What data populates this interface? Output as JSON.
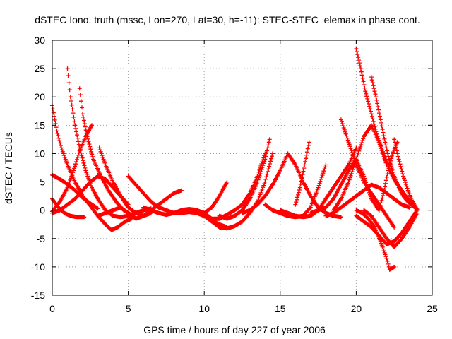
{
  "chart_data": {
    "type": "scatter",
    "title": "dSTEC Iono. truth (mssc, Lon=270, Lat=30, h=-11): STEC-STEC_elemax in phase cont.",
    "xlabel": "GPS time / hours of day 227 of year 2006",
    "ylabel": "dSTEC  / TECUs",
    "xlim": [
      0,
      25
    ],
    "ylim": [
      -15,
      30
    ],
    "xticks": [
      0,
      5,
      10,
      15,
      20,
      25
    ],
    "yticks": [
      -15,
      -10,
      -5,
      0,
      5,
      10,
      15,
      20,
      25,
      30
    ],
    "grid": true,
    "marker": "plus",
    "color": "#ff0000",
    "series": [
      {
        "x": [
          0.0,
          0.3,
          0.6,
          1.0,
          1.5,
          2.0,
          2.5,
          3.0,
          3.5,
          3.9,
          4.3,
          4.8,
          5.2
        ],
        "y": [
          18.5,
          14.0,
          11.0,
          8.0,
          5.0,
          2.5,
          0.8,
          -1.0,
          -2.5,
          -3.5,
          -3.0,
          -2.0,
          -1.5
        ]
      },
      {
        "x": [
          1.0,
          1.2,
          1.5,
          1.8,
          2.2,
          2.6,
          3.0,
          3.5,
          4.0,
          4.5,
          5.0,
          5.5,
          6.0,
          6.5
        ],
        "y": [
          25.0,
          20.0,
          15.0,
          11.0,
          7.0,
          4.0,
          2.0,
          0.0,
          -1.0,
          -1.2,
          -1.0,
          -0.5,
          0.0,
          0.3
        ]
      },
      {
        "x": [
          1.8,
          2.0,
          2.3,
          2.7,
          3.2,
          3.7,
          4.2,
          4.7,
          5.2,
          5.6,
          6.0
        ],
        "y": [
          21.5,
          17.0,
          13.0,
          9.0,
          6.0,
          3.5,
          1.5,
          0.0,
          -0.8,
          -0.5,
          0.0
        ]
      },
      {
        "x": [
          3.1,
          3.5,
          4.0,
          4.5,
          5.0,
          5.5,
          6.0,
          6.5
        ],
        "y": [
          11.0,
          8.0,
          5.0,
          2.5,
          0.5,
          -0.5,
          -1.0,
          -0.5
        ]
      },
      {
        "x": [
          0.0,
          0.5,
          1.0,
          1.5,
          2.0,
          2.5,
          3.0
        ],
        "y": [
          6.2,
          5.5,
          4.6,
          3.5,
          2.2,
          1.2,
          0.3
        ]
      },
      {
        "x": [
          0.0,
          0.4,
          0.8,
          1.2,
          1.6,
          2.1
        ],
        "y": [
          2.0,
          0.5,
          -0.5,
          -1.0,
          -1.2,
          -1.2
        ]
      },
      {
        "x": [
          0.0,
          0.5,
          1.0,
          1.4,
          1.8,
          2.2,
          2.6
        ],
        "y": [
          -0.2,
          1.5,
          4.0,
          7.0,
          10.5,
          13.0,
          15.0
        ]
      },
      {
        "x": [
          0.0,
          0.5,
          1.0,
          1.5,
          2.0,
          2.5,
          3.0,
          3.5,
          4.0,
          4.5,
          5.0
        ],
        "y": [
          -0.5,
          0.0,
          1.0,
          2.0,
          3.5,
          5.0,
          6.0,
          5.5,
          4.0,
          2.5,
          1.0
        ]
      },
      {
        "x": [
          5.0,
          5.5,
          6.0,
          6.5,
          7.0,
          7.5,
          8.0,
          8.5,
          9.0,
          9.5,
          10.0,
          10.5,
          11.0,
          11.5
        ],
        "y": [
          6.0,
          4.5,
          3.0,
          1.5,
          0.5,
          0.0,
          -0.5,
          -0.5,
          -0.3,
          -0.5,
          -1.0,
          -1.8,
          -2.5,
          -3.0
        ]
      },
      {
        "x": [
          3.0,
          3.5,
          4.0,
          4.5,
          5.0,
          5.5,
          6.0,
          6.5,
          7.0,
          7.5,
          8.0,
          8.5
        ],
        "y": [
          -1.0,
          -0.5,
          0.0,
          0.5,
          -0.5,
          -1.5,
          -1.0,
          0.0,
          1.0,
          2.0,
          3.0,
          3.5
        ]
      },
      {
        "x": [
          6.0,
          6.5,
          7.0,
          7.5,
          8.0,
          8.5,
          9.0,
          9.5,
          10.0,
          10.5,
          11.0,
          11.5
        ],
        "y": [
          0.5,
          0.0,
          -0.5,
          -0.8,
          -0.5,
          0.0,
          0.2,
          0.0,
          -0.5,
          0.5,
          2.5,
          5.0
        ]
      },
      {
        "x": [
          8.5,
          9.0,
          9.5,
          10.0,
          10.5,
          11.0,
          11.5,
          12.0,
          12.5,
          13.0,
          13.5,
          14.0
        ],
        "y": [
          0.0,
          0.2,
          0.0,
          -0.5,
          -1.5,
          -1.5,
          -0.8,
          0.0,
          1.0,
          3.0,
          6.0,
          10.0
        ]
      },
      {
        "x": [
          10.0,
          10.5,
          11.0,
          11.5,
          12.0,
          12.5,
          13.0,
          13.5,
          14.0,
          14.5
        ],
        "y": [
          -1.0,
          -2.0,
          -3.0,
          -3.2,
          -2.8,
          -2.0,
          -0.5,
          1.5,
          5.0,
          10.0
        ]
      },
      {
        "x": [
          11.0,
          11.5,
          12.0,
          12.5,
          13.0,
          13.5,
          14.0,
          14.3
        ],
        "y": [
          -1.0,
          -1.5,
          -1.0,
          0.0,
          2.0,
          5.0,
          9.0,
          12.5
        ]
      },
      {
        "x": [
          12.5,
          13.0,
          13.5,
          14.0,
          14.5,
          15.0,
          15.5,
          16.0,
          16.5,
          17.0,
          17.5,
          18.0,
          18.5,
          19.0
        ],
        "y": [
          -0.5,
          0.0,
          1.0,
          2.5,
          4.5,
          7.0,
          10.0,
          8.0,
          5.0,
          2.5,
          0.5,
          -0.5,
          -1.0,
          -1.2
        ]
      },
      {
        "x": [
          14.0,
          14.5,
          15.0,
          15.5,
          16.0,
          16.5,
          17.0,
          17.5,
          18.0
        ],
        "y": [
          1.0,
          0.0,
          -0.5,
          -1.0,
          -1.2,
          -1.0,
          0.5,
          4.0,
          8.0
        ]
      },
      {
        "x": [
          15.0,
          15.5,
          16.0,
          16.5,
          17.0,
          17.5,
          18.0,
          18.5,
          19.0,
          19.5,
          20.0
        ],
        "y": [
          0.0,
          -0.5,
          -1.0,
          -1.2,
          -1.0,
          0.0,
          2.0,
          4.0,
          6.0,
          8.0,
          11.0
        ]
      },
      {
        "x": [
          16.0,
          16.3,
          16.6,
          16.9
        ],
        "y": [
          1.0,
          4.0,
          8.0,
          12.0
        ]
      },
      {
        "x": [
          17.0,
          17.5,
          18.0,
          18.5,
          19.0,
          19.5,
          20.0,
          20.5,
          21.0,
          21.5
        ],
        "y": [
          -0.5,
          0.0,
          0.5,
          2.0,
          4.5,
          7.0,
          9.0,
          6.0,
          2.0,
          0.0
        ]
      },
      {
        "x": [
          18.5,
          19.0,
          19.5,
          20.0,
          20.5,
          21.0,
          21.5,
          22.0
        ],
        "y": [
          0.0,
          2.0,
          5.0,
          9.0,
          13.0,
          15.0,
          12.0,
          8.0
        ]
      },
      {
        "x": [
          19.0,
          19.5,
          20.0,
          20.5,
          21.0,
          21.5,
          22.0,
          22.5
        ],
        "y": [
          16.0,
          12.0,
          8.0,
          5.0,
          3.0,
          1.0,
          -1.0,
          -3.0
        ]
      },
      {
        "x": [
          20.0,
          20.3,
          20.6,
          21.0,
          21.4,
          21.8,
          22.2,
          22.6,
          23.0,
          23.4,
          23.8,
          24.0
        ],
        "y": [
          28.5,
          25.0,
          21.0,
          17.0,
          13.0,
          10.0,
          7.0,
          5.0,
          3.5,
          2.0,
          0.8,
          0.2
        ]
      },
      {
        "x": [
          21.0,
          21.3,
          21.6,
          21.9,
          22.2,
          22.5,
          22.8,
          23.1,
          23.4,
          23.7,
          24.0
        ],
        "y": [
          23.5,
          20.0,
          16.0,
          12.0,
          8.5,
          6.0,
          4.0,
          2.5,
          1.5,
          0.8,
          0.2
        ]
      },
      {
        "x": [
          20.0,
          20.4,
          20.8,
          21.2,
          21.6,
          22.0,
          22.2,
          22.5
        ],
        "y": [
          0.0,
          -0.5,
          -1.5,
          -3.0,
          -5.5,
          -8.5,
          -10.5,
          -10.0
        ]
      },
      {
        "x": [
          20.0,
          20.5,
          21.0,
          21.5,
          22.0,
          22.5,
          23.0,
          23.5,
          24.0
        ],
        "y": [
          -1.0,
          -2.0,
          -3.0,
          -4.5,
          -6.0,
          -5.5,
          -4.0,
          -2.0,
          0.0
        ]
      },
      {
        "x": [
          20.5,
          21.0,
          21.5,
          22.0,
          22.5,
          23.0,
          23.5,
          24.0
        ],
        "y": [
          0.0,
          -1.0,
          -3.0,
          -5.0,
          -6.5,
          -5.0,
          -3.0,
          -0.5
        ]
      },
      {
        "x": [
          21.5,
          21.8,
          22.1,
          22.4,
          22.7
        ],
        "y": [
          0.0,
          3.0,
          7.0,
          10.0,
          12.0
        ]
      },
      {
        "x": [
          22.5,
          22.8,
          23.1,
          23.4,
          23.7,
          24.0
        ],
        "y": [
          12.5,
          9.0,
          6.0,
          3.5,
          1.5,
          0.2
        ]
      },
      {
        "x": [
          18.0,
          18.5,
          19.0,
          19.5,
          20.0,
          20.5,
          21.0,
          21.5,
          22.0,
          22.5,
          23.0,
          23.5
        ],
        "y": [
          -1.0,
          -0.5,
          0.5,
          1.5,
          2.5,
          3.5,
          4.5,
          4.0,
          3.0,
          2.0,
          1.0,
          0.5
        ]
      }
    ]
  }
}
